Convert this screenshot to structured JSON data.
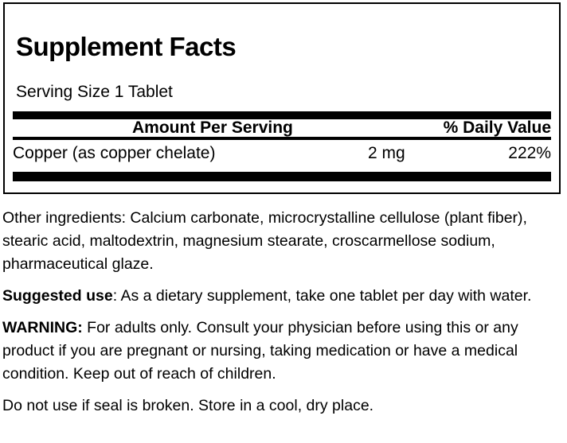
{
  "panel": {
    "title": "Supplement Facts",
    "serving_size": "Serving Size 1 Tablet",
    "columns": {
      "amount_header": "Amount Per Serving",
      "dv_header": "% Daily Value"
    },
    "rows": [
      {
        "name": "Copper (as copper chelate)",
        "amount": "2 mg",
        "daily_value": "222%"
      }
    ]
  },
  "body": {
    "other_ingredients": "Other ingredients: Calcium carbonate, microcrystalline cellulose (plant fiber), stearic acid, maltodextrin, magnesium stearate, croscarmellose sodium, pharmaceutical glaze.",
    "suggested_use": {
      "lead": "Suggested use",
      "rest": ": As a dietary supplement, take one tablet per day with water."
    },
    "warning": {
      "lead": "WARNING:",
      "rest": " For adults only. Consult your physician before using this or any product if you are pregnant or nursing, taking medication or have a medical condition. Keep out of reach of children."
    },
    "storage": "Do not use if seal is broken. Store in a cool, dry place."
  },
  "colors": {
    "text": "#000000",
    "background": "#ffffff",
    "rule": "#000000"
  }
}
